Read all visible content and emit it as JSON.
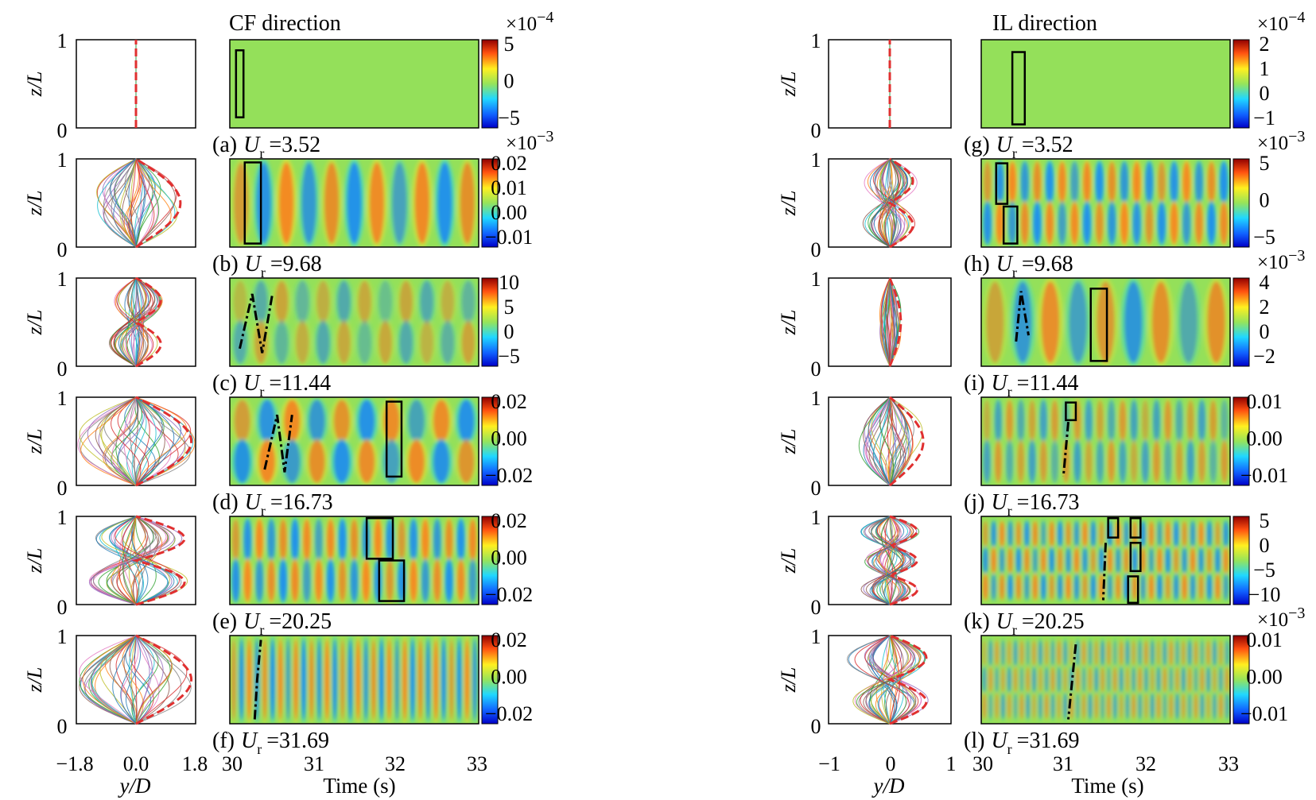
{
  "left": {
    "title": "CF direction",
    "xlabel_profile": "y/D",
    "xticks_profile": [
      "−1.8",
      "0.0",
      "1.8"
    ],
    "xlabel_time": "Time (s)",
    "xticks_time": [
      "30",
      "31",
      "32",
      "33"
    ],
    "panels": [
      {
        "caption": "(a)",
        "ur": "=3.52",
        "exp": "×10",
        "exp_pow": "−4",
        "cticks": [
          "5",
          "0",
          "−5"
        ],
        "nodes": 0,
        "amp": 0.03,
        "pattern": "flat",
        "nbands": 0,
        "intensity": 0.0
      },
      {
        "caption": "(b)",
        "ur": "=9.68",
        "exp": "×10",
        "exp_pow": "−3",
        "cticks": [
          "0.02",
          "0.01",
          "0.00",
          "−0.01"
        ],
        "nodes": 1,
        "amp": 0.75,
        "pattern": "single",
        "nbands": 11,
        "intensity": 1.0
      },
      {
        "caption": "(c)",
        "ur": "=11.44",
        "exp": "",
        "exp_pow": "",
        "cticks": [
          "10",
          "5",
          "0",
          "−5"
        ],
        "nodes": 2,
        "amp": 0.42,
        "pattern": "double",
        "nbands": 12,
        "intensity": 0.45
      },
      {
        "caption": "(d)",
        "ur": "=16.73",
        "exp": "",
        "exp_pow": "",
        "cticks": [
          "0.02",
          "0.00",
          "−0.02"
        ],
        "nodes": 1,
        "amp": 1.1,
        "pattern": "double",
        "nbands": 10,
        "intensity": 0.95
      },
      {
        "caption": "(e)",
        "ur": "=20.25",
        "exp": "",
        "exp_pow": "",
        "cticks": [
          "0.02",
          "0.00",
          "−0.02"
        ],
        "nodes": 2,
        "amp": 0.82,
        "pattern": "double",
        "nbands": 21,
        "intensity": 1.0
      },
      {
        "caption": "(f)",
        "ur": "=31.69",
        "exp": "",
        "exp_pow": "",
        "cticks": [
          "0.02",
          "0.00",
          "−0.02"
        ],
        "nodes": 1,
        "amp": 1.0,
        "pattern": "single",
        "nbands": 32,
        "intensity": 0.95
      }
    ]
  },
  "right": {
    "title": "IL direction",
    "xlabel_profile": "y/D",
    "xticks_profile": [
      "−1",
      "0",
      "1"
    ],
    "xlabel_time": "Time (s)",
    "xticks_time": [
      "30",
      "31",
      "32",
      "33"
    ],
    "panels": [
      {
        "caption": "(g)",
        "ur": "=3.52",
        "exp": "×10",
        "exp_pow": "−4",
        "cticks": [
          "2",
          "1",
          "0",
          "−1"
        ],
        "nodes": 0,
        "amp": 0.03,
        "pattern": "flat",
        "nbands": 0,
        "intensity": 0.0
      },
      {
        "caption": "(h)",
        "ur": "=9.68",
        "exp": "×10",
        "exp_pow": "−3",
        "cticks": [
          "5",
          "0",
          "−5"
        ],
        "nodes": 2,
        "amp": 0.38,
        "pattern": "double",
        "nbands": 20,
        "intensity": 1.0
      },
      {
        "caption": "(i)",
        "ur": "=11.44",
        "exp": "×10",
        "exp_pow": "−3",
        "cticks": [
          "4",
          "2",
          "0",
          "−2"
        ],
        "nodes": 1,
        "amp": 0.18,
        "pattern": "single",
        "nbands": 9,
        "intensity": 0.8
      },
      {
        "caption": "(j)",
        "ur": "=16.73",
        "exp": "",
        "exp_pow": "",
        "cticks": [
          "0.01",
          "0.00",
          "−0.01"
        ],
        "nodes": 1,
        "amp": 0.55,
        "pattern": "double",
        "nbands": 22,
        "intensity": 0.6
      },
      {
        "caption": "(k)",
        "ur": "=20.25",
        "exp": "",
        "exp_pow": "",
        "cticks": [
          "5",
          "0",
          "−5",
          "−10"
        ],
        "nodes": 3,
        "amp": 0.45,
        "pattern": "triple",
        "nbands": 30,
        "intensity": 0.85
      },
      {
        "caption": "(l)",
        "ur": "=31.69",
        "exp": "×10",
        "exp_pow": "−3",
        "cticks": [
          "0.01",
          "0.00",
          "−0.01"
        ],
        "nodes": 2,
        "amp": 0.6,
        "pattern": "triple",
        "nbands": 40,
        "intensity": 0.55
      }
    ]
  },
  "common": {
    "ylabel": "z/L",
    "yticks": [
      "1",
      "0"
    ],
    "ur_symbol": "U",
    "ur_sub": "r"
  },
  "colors": {
    "background": "#94e05a",
    "positive": "#e8361d",
    "negative": "#1a4ee0",
    "profile_envelope": "#e03030",
    "box": "#000000"
  }
}
